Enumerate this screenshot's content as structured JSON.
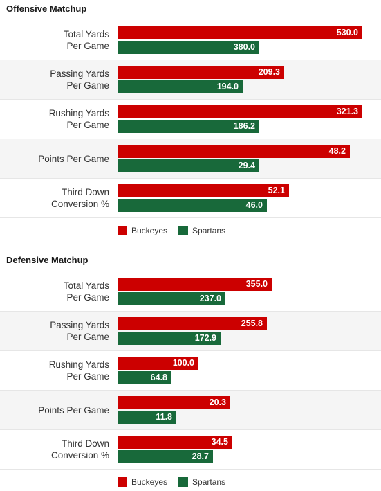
{
  "colors": {
    "buckeyes": "#cc0000",
    "spartans": "#18693a"
  },
  "chart_data": [
    {
      "type": "bar",
      "orientation": "horizontal",
      "title": "Offensive Matchup",
      "categories": [
        "Total Yards Per Game",
        "Passing Yards Per Game",
        "Rushing Yards Per Game",
        "Points Per Game",
        "Third Down Conversion %"
      ],
      "category_lines": [
        [
          "Total Yards",
          "Per Game"
        ],
        [
          "Passing Yards",
          "Per Game"
        ],
        [
          "Rushing Yards",
          "Per Game"
        ],
        [
          "Points Per Game"
        ],
        [
          "Third Down",
          "Conversion %"
        ]
      ],
      "series": [
        {
          "name": "Buckeyes",
          "values": [
            530.0,
            209.3,
            321.3,
            48.2,
            52.1
          ],
          "labels": [
            "530.0",
            "209.3",
            "321.3",
            "48.2",
            "52.1"
          ]
        },
        {
          "name": "Spartans",
          "values": [
            380.0,
            194.0,
            186.2,
            29.4,
            46.0
          ],
          "labels": [
            "380.0",
            "194.0",
            "186.2",
            "29.4",
            "46.0"
          ]
        }
      ],
      "bar_lengths": [
        [
          1.0,
          0.58
        ],
        [
          0.68,
          0.51
        ],
        [
          1.0,
          0.58
        ],
        [
          0.95,
          0.58
        ],
        [
          0.7,
          0.61
        ]
      ],
      "legend": [
        "Buckeyes",
        "Spartans"
      ],
      "legend_position": "bottom"
    },
    {
      "type": "bar",
      "orientation": "horizontal",
      "title": "Defensive Matchup",
      "categories": [
        "Total Yards Per Game",
        "Passing Yards Per Game",
        "Rushing Yards Per Game",
        "Points Per Game",
        "Third Down Conversion %"
      ],
      "category_lines": [
        [
          "Total Yards",
          "Per Game"
        ],
        [
          "Passing Yards",
          "Per Game"
        ],
        [
          "Rushing Yards",
          "Per Game"
        ],
        [
          "Points Per Game"
        ],
        [
          "Third Down",
          "Conversion %"
        ]
      ],
      "series": [
        {
          "name": "Buckeyes",
          "values": [
            355.0,
            255.8,
            100.0,
            20.3,
            34.5
          ],
          "labels": [
            "355.0",
            "255.8",
            "100.0",
            "20.3",
            "34.5"
          ]
        },
        {
          "name": "Spartans",
          "values": [
            237.0,
            172.9,
            64.8,
            11.8,
            28.7
          ],
          "labels": [
            "237.0",
            "172.9",
            "64.8",
            "11.8",
            "28.7"
          ]
        }
      ],
      "bar_lengths": [
        [
          0.63,
          0.44
        ],
        [
          0.61,
          0.42
        ],
        [
          0.33,
          0.22
        ],
        [
          0.46,
          0.24
        ],
        [
          0.47,
          0.39
        ]
      ],
      "legend": [
        "Buckeyes",
        "Spartans"
      ],
      "legend_position": "bottom"
    }
  ]
}
